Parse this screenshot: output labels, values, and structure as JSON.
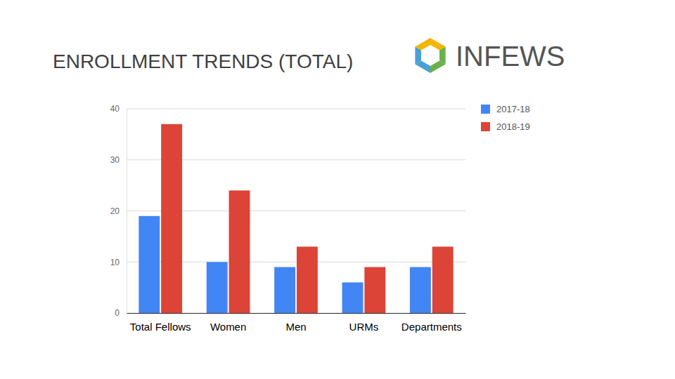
{
  "logo": "INFEWS",
  "chart_data": {
    "type": "bar",
    "title": "ENROLLMENT TRENDS (TOTAL)",
    "categories": [
      "Total Fellows",
      "Women",
      "Men",
      "URMs",
      "Departments"
    ],
    "series": [
      {
        "name": "2017-18",
        "color": "#4285f4",
        "values": [
          19,
          10,
          9,
          6,
          9
        ]
      },
      {
        "name": "2018-19",
        "color": "#db4437",
        "values": [
          37,
          24,
          13,
          9,
          13
        ]
      }
    ],
    "ylim": [
      0,
      40
    ],
    "yticks": [
      0,
      10,
      20,
      30,
      40
    ],
    "grid": true,
    "legend": "top-right"
  }
}
